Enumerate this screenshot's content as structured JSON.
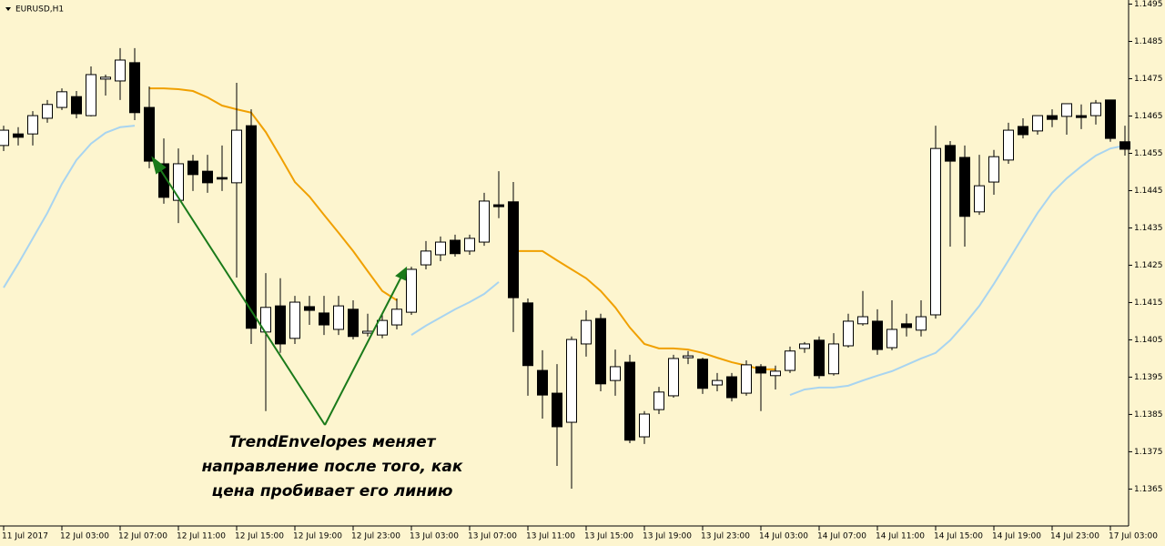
{
  "chart_data": {
    "type": "candlestick",
    "title": "EURUSD,H1",
    "annotation": [
      "TrendEnvelopes меняет",
      "направление после того, как",
      "цена пробивает его линию"
    ],
    "background": "#fdf5cf",
    "bull_color": "#ffffff",
    "bear_color": "#000000",
    "annotation_color": "#1a6e1a",
    "categories": [
      "11 Jul 2017",
      null,
      null,
      null,
      "12 Jul 03:00",
      null,
      null,
      null,
      "12 Jul 07:00",
      null,
      null,
      null,
      "12 Jul 11:00",
      null,
      null,
      null,
      "12 Jul 15:00",
      null,
      null,
      null,
      "12 Jul 19:00",
      null,
      null,
      null,
      "12 Jul 23:00",
      null,
      null,
      null,
      "13 Jul 03:00",
      null,
      null,
      null,
      "13 Jul 07:00",
      null,
      null,
      null,
      "13 Jul 11:00",
      null,
      null,
      null,
      "13 Jul 15:00",
      null,
      null,
      null,
      "13 Jul 19:00",
      null,
      null,
      null,
      "13 Jul 23:00",
      null,
      null,
      null,
      "14 Jul 03:00",
      null,
      null,
      null,
      "14 Jul 07:00",
      null,
      null,
      null,
      "14 Jul 11:00",
      null,
      null,
      null,
      "14 Jul 15:00",
      null,
      null,
      null,
      "14 Jul 19:00",
      null,
      null,
      null,
      "14 Jul 23:00",
      null,
      null,
      null,
      "17 Jul 03:00",
      null
    ],
    "open": [
      1.14571,
      1.14602,
      1.14602,
      1.14644,
      1.14673,
      1.14702,
      1.14651,
      1.14749,
      1.14744,
      1.14793,
      1.14673,
      1.14522,
      1.14424,
      1.14529,
      1.14502,
      1.14485,
      1.14471,
      1.14624,
      1.14071,
      1.14141,
      1.14054,
      1.14139,
      1.14122,
      1.14078,
      1.14132,
      1.14068,
      1.14063,
      1.1409,
      1.14124,
      1.14251,
      1.14278,
      1.14317,
      1.14288,
      1.14312,
      1.14412,
      1.1442,
      1.14149,
      1.13968,
      1.13907,
      1.13829,
      1.14039,
      1.14107,
      1.13941,
      1.1399,
      1.1379,
      1.13863,
      1.139,
      1.14002,
      1.13998,
      1.13929,
      1.13951,
      1.13907,
      1.13978,
      1.13954,
      1.13968,
      1.14027,
      1.14049,
      1.13959,
      1.14034,
      1.14093,
      1.141,
      1.14029,
      1.14093,
      1.14076,
      1.14117,
      1.14571,
      1.14539,
      1.14393,
      1.14473,
      1.14532,
      1.14622,
      1.1461,
      1.14651,
      1.14649,
      1.14651,
      1.14651,
      1.14693,
      1.14581
    ],
    "high": [
      1.14624,
      1.1462,
      1.14663,
      1.14693,
      1.14724,
      1.14717,
      1.14783,
      1.14761,
      1.14832,
      1.14832,
      1.14729,
      1.1459,
      1.14563,
      1.14546,
      1.14546,
      1.14571,
      1.14739,
      1.14668,
      1.14229,
      1.14215,
      1.14168,
      1.14168,
      1.14168,
      1.14168,
      1.14156,
      1.1412,
      1.1412,
      1.14161,
      1.14246,
      1.14315,
      1.14327,
      1.14332,
      1.14332,
      1.14444,
      1.14502,
      1.14473,
      1.14161,
      1.14022,
      1.13985,
      1.14059,
      1.14129,
      1.1412,
      1.14024,
      1.1401,
      1.13859,
      1.13924,
      1.1401,
      1.1402,
      1.14002,
      1.13961,
      1.13961,
      1.13995,
      1.13985,
      1.13981,
      1.14032,
      1.14044,
      1.14059,
      1.14068,
      1.1412,
      1.14181,
      1.14132,
      1.14156,
      1.1412,
      1.14156,
      1.14624,
      1.14583,
      1.14571,
      1.14546,
      1.14559,
      1.14632,
      1.14644,
      1.14651,
      1.14668,
      1.14683,
      1.14681,
      1.14693,
      1.14693,
      1.14624
    ],
    "low": [
      1.14556,
      1.14571,
      1.14571,
      1.14632,
      1.14666,
      1.14644,
      1.14649,
      1.14705,
      1.14693,
      1.14639,
      1.1451,
      1.14415,
      1.14363,
      1.14449,
      1.14444,
      1.14449,
      1.14217,
      1.14039,
      1.13859,
      1.14015,
      1.14039,
      1.1409,
      1.14063,
      1.14063,
      1.14051,
      1.14059,
      1.14054,
      1.14078,
      1.14117,
      1.14239,
      1.14261,
      1.14273,
      1.14278,
      1.14302,
      1.14376,
      1.14071,
      1.139,
      1.13839,
      1.13712,
      1.13651,
      1.14005,
      1.13912,
      1.139,
      1.13773,
      1.13771,
      1.13851,
      1.13895,
      1.13985,
      1.13905,
      1.13912,
      1.13885,
      1.139,
      1.13859,
      1.13917,
      1.13961,
      1.14015,
      1.13946,
      1.13954,
      1.14029,
      1.14088,
      1.1401,
      1.14022,
      1.14059,
      1.14059,
      1.14107,
      1.143,
      1.143,
      1.14385,
      1.14439,
      1.14522,
      1.1459,
      1.146,
      1.1462,
      1.146,
      1.14615,
      1.14627,
      1.14581,
      1.14544
    ],
    "close": [
      1.14612,
      1.14593,
      1.14651,
      1.14681,
      1.14715,
      1.14656,
      1.14761,
      1.14754,
      1.148,
      1.14659,
      1.14529,
      1.14432,
      1.14522,
      1.14493,
      1.14471,
      1.14481,
      1.14612,
      1.14081,
      1.14137,
      1.14039,
      1.14151,
      1.14129,
      1.1409,
      1.14141,
      1.14059,
      1.14073,
      1.14102,
      1.14132,
      1.14239,
      1.14288,
      1.14312,
      1.14281,
      1.14322,
      1.14422,
      1.14407,
      1.14163,
      1.13981,
      1.13902,
      1.13817,
      1.14051,
      1.14102,
      1.13932,
      1.13978,
      1.13781,
      1.13851,
      1.1391,
      1.14,
      1.14007,
      1.1392,
      1.13941,
      1.13895,
      1.13983,
      1.13961,
      1.13966,
      1.1402,
      1.14039,
      1.13954,
      1.14039,
      1.141,
      1.14112,
      1.14024,
      1.14078,
      1.14083,
      1.14112,
      1.14563,
      1.14529,
      1.14381,
      1.14463,
      1.14541,
      1.14612,
      1.146,
      1.14651,
      1.14641,
      1.14683,
      1.14646,
      1.14685,
      1.1459,
      1.14561
    ],
    "lines": [
      {
        "color": "#f0a000",
        "values": [
          null,
          null,
          null,
          null,
          null,
          null,
          null,
          null,
          null,
          null,
          1.14724,
          1.14724,
          1.14722,
          1.14717,
          1.147,
          1.14678,
          1.14668,
          1.14659,
          1.14607,
          1.14541,
          1.14473,
          1.14434,
          1.14385,
          1.14337,
          1.14288,
          1.14234,
          1.14181,
          1.14156,
          null,
          null,
          null,
          null,
          null,
          null,
          null,
          1.14288,
          1.14288,
          1.14288,
          1.14263,
          1.14239,
          1.14215,
          1.14181,
          1.14137,
          1.14083,
          1.14039,
          1.14027,
          1.14027,
          1.14024,
          1.14015,
          1.14002,
          1.1399,
          1.13981,
          1.13971,
          1.13971,
          null,
          null,
          null,
          null,
          null,
          null,
          null,
          null,
          null,
          null,
          null,
          null,
          null,
          null,
          null,
          null,
          null,
          null,
          null,
          null,
          null,
          null,
          null,
          null
        ]
      },
      {
        "color": "#a8d4f0",
        "values": [
          1.1419,
          1.14254,
          1.14322,
          1.1439,
          1.14468,
          1.14532,
          1.14576,
          1.14605,
          1.1462,
          1.14624,
          null,
          null,
          null,
          null,
          null,
          null,
          null,
          null,
          null,
          null,
          null,
          null,
          null,
          null,
          null,
          null,
          null,
          null,
          1.14063,
          1.14088,
          1.1411,
          1.14132,
          1.14151,
          1.14173,
          1.14205,
          null,
          null,
          null,
          null,
          null,
          null,
          null,
          null,
          null,
          null,
          null,
          null,
          null,
          null,
          null,
          null,
          null,
          null,
          null,
          1.13902,
          1.13917,
          1.13922,
          1.13922,
          1.13927,
          1.13941,
          1.13954,
          1.13966,
          1.13983,
          1.14,
          1.14015,
          1.14049,
          1.14093,
          1.14141,
          1.142,
          1.14263,
          1.14327,
          1.1439,
          1.14444,
          1.14483,
          1.14515,
          1.14544,
          1.14563,
          1.14571
        ]
      }
    ],
    "ylim": [
      1.13551,
      1.14961
    ],
    "yticks": [
      1.1365,
      1.1375,
      1.1385,
      1.1395,
      1.1405,
      1.1415,
      1.1425,
      1.1435,
      1.1445,
      1.1455,
      1.1465,
      1.1475,
      1.1485,
      1.1495
    ]
  }
}
